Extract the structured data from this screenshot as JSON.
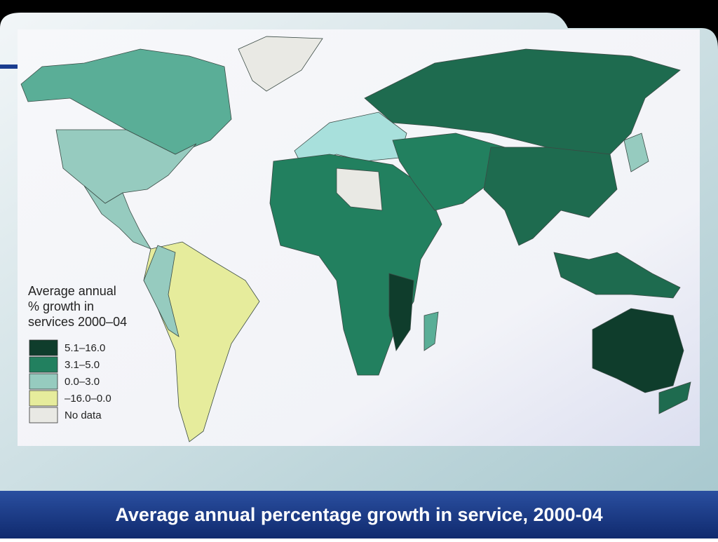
{
  "map": {
    "legend": {
      "title_lines": [
        "Average annual",
        "% growth in",
        "services 2000–04"
      ],
      "items": [
        {
          "label": "5.1–16.0",
          "color": "#0f3d2c"
        },
        {
          "label": "3.1–5.0",
          "color": "#22805f"
        },
        {
          "label": "0.0–3.0",
          "color": "#96cbbf"
        },
        {
          "label": "–16.0–0.0",
          "color": "#e6ec9c"
        },
        {
          "label": "No data",
          "color": "#e9e9e4"
        }
      ]
    }
  },
  "slide_title": "Average annual percentage growth in service, 2000-04"
}
